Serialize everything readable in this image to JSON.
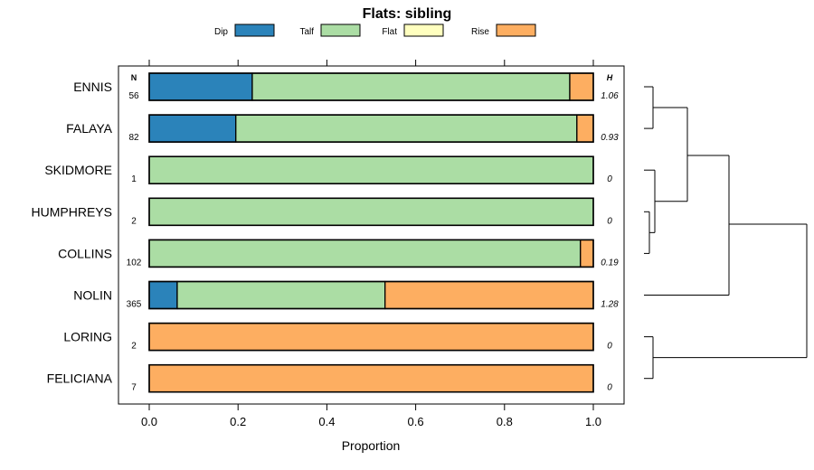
{
  "chart_data": {
    "type": "bar",
    "orientation": "horizontal",
    "stacked": true,
    "title": "Flats: sibling",
    "xlabel": "Proportion",
    "xlim": [
      -0.07,
      1.07
    ],
    "xticks": [
      0.0,
      0.2,
      0.4,
      0.6,
      0.8,
      1.0
    ],
    "xtick_labels": [
      "0.0",
      "0.2",
      "0.4",
      "0.6",
      "0.8",
      "1.0"
    ],
    "legend_position": "top",
    "categories": [
      "ENNIS",
      "FALAYA",
      "SKIDMORE",
      "HUMPHREYS",
      "COLLINS",
      "NOLIN",
      "LORING",
      "FELICIANA"
    ],
    "n_header": "N",
    "h_header": "H",
    "n_values": [
      "56",
      "82",
      "1",
      "2",
      "102",
      "365",
      "2",
      "7"
    ],
    "h_values": [
      "1.06",
      "0.93",
      "0",
      "0",
      "0.19",
      "1.28",
      "0",
      "0"
    ],
    "series": [
      {
        "name": "Dip",
        "color": "#2b83ba",
        "values": [
          0.232,
          0.195,
          0,
          0,
          0,
          0.063,
          0,
          0
        ]
      },
      {
        "name": "Talf",
        "color": "#abdda4",
        "values": [
          0.715,
          0.768,
          1.0,
          1.0,
          0.971,
          0.468,
          0,
          0
        ]
      },
      {
        "name": "Flat",
        "color": "#ffffbf",
        "values": [
          0,
          0,
          0,
          0,
          0,
          0,
          0,
          0
        ]
      },
      {
        "name": "Rise",
        "color": "#fdae61",
        "values": [
          0.053,
          0.037,
          0,
          0,
          0.029,
          0.469,
          1.0,
          1.0
        ]
      }
    ]
  }
}
